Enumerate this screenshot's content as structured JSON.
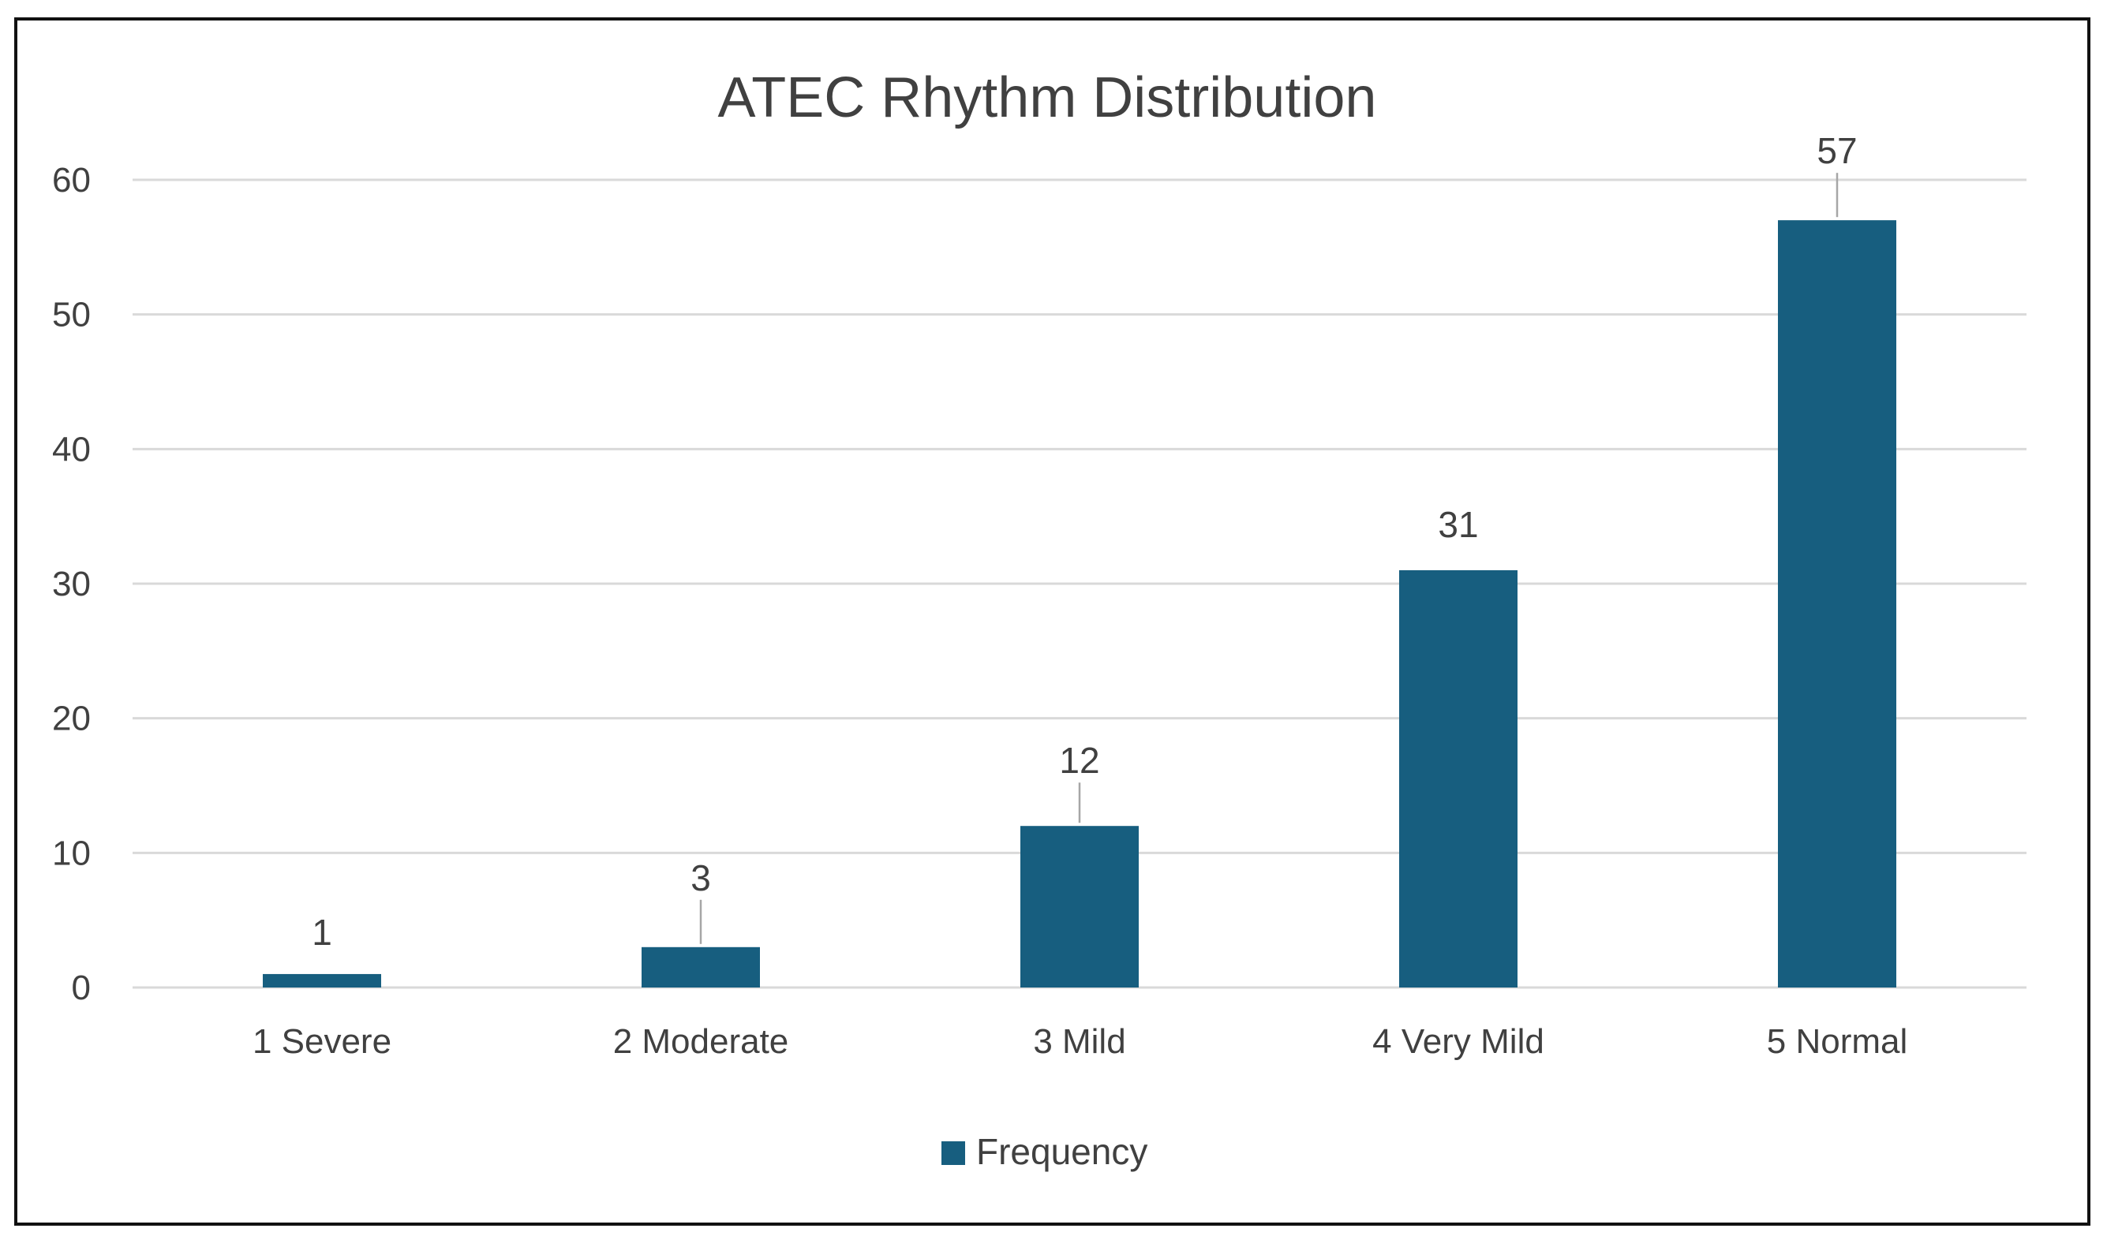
{
  "chart_data": {
    "type": "bar",
    "title": "ATEC Rhythm Distribution",
    "categories": [
      "1 Severe",
      "2 Moderate",
      "3 Mild",
      "4 Very Mild",
      "5 Normal"
    ],
    "series": [
      {
        "name": "Frequency",
        "values": [
          1,
          3,
          12,
          31,
          57
        ],
        "color": "#175e7f"
      }
    ],
    "data_labels": [
      "1",
      "3",
      "12",
      "31",
      "57"
    ],
    "ylim": [
      0,
      60
    ],
    "yticks": [
      0,
      10,
      20,
      30,
      40,
      50,
      60
    ],
    "ytick_labels": [
      "0",
      "10",
      "20",
      "30",
      "40",
      "50",
      "60"
    ],
    "grid": true,
    "gridline_color": "#d9d9d9",
    "legend_position": "bottom",
    "xlabel": "",
    "ylabel": ""
  }
}
